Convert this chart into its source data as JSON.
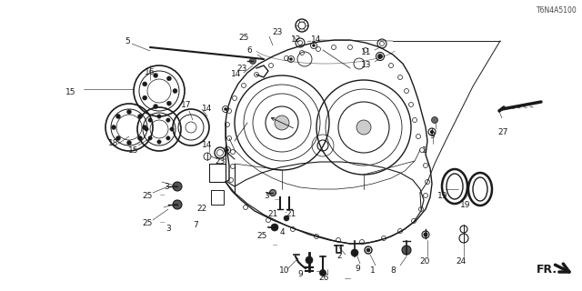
{
  "bg": "#ffffff",
  "lc": "#1a1a1a",
  "diagram_code": "T6N4A5100",
  "fs": 6.5,
  "fs_fr": 9
}
